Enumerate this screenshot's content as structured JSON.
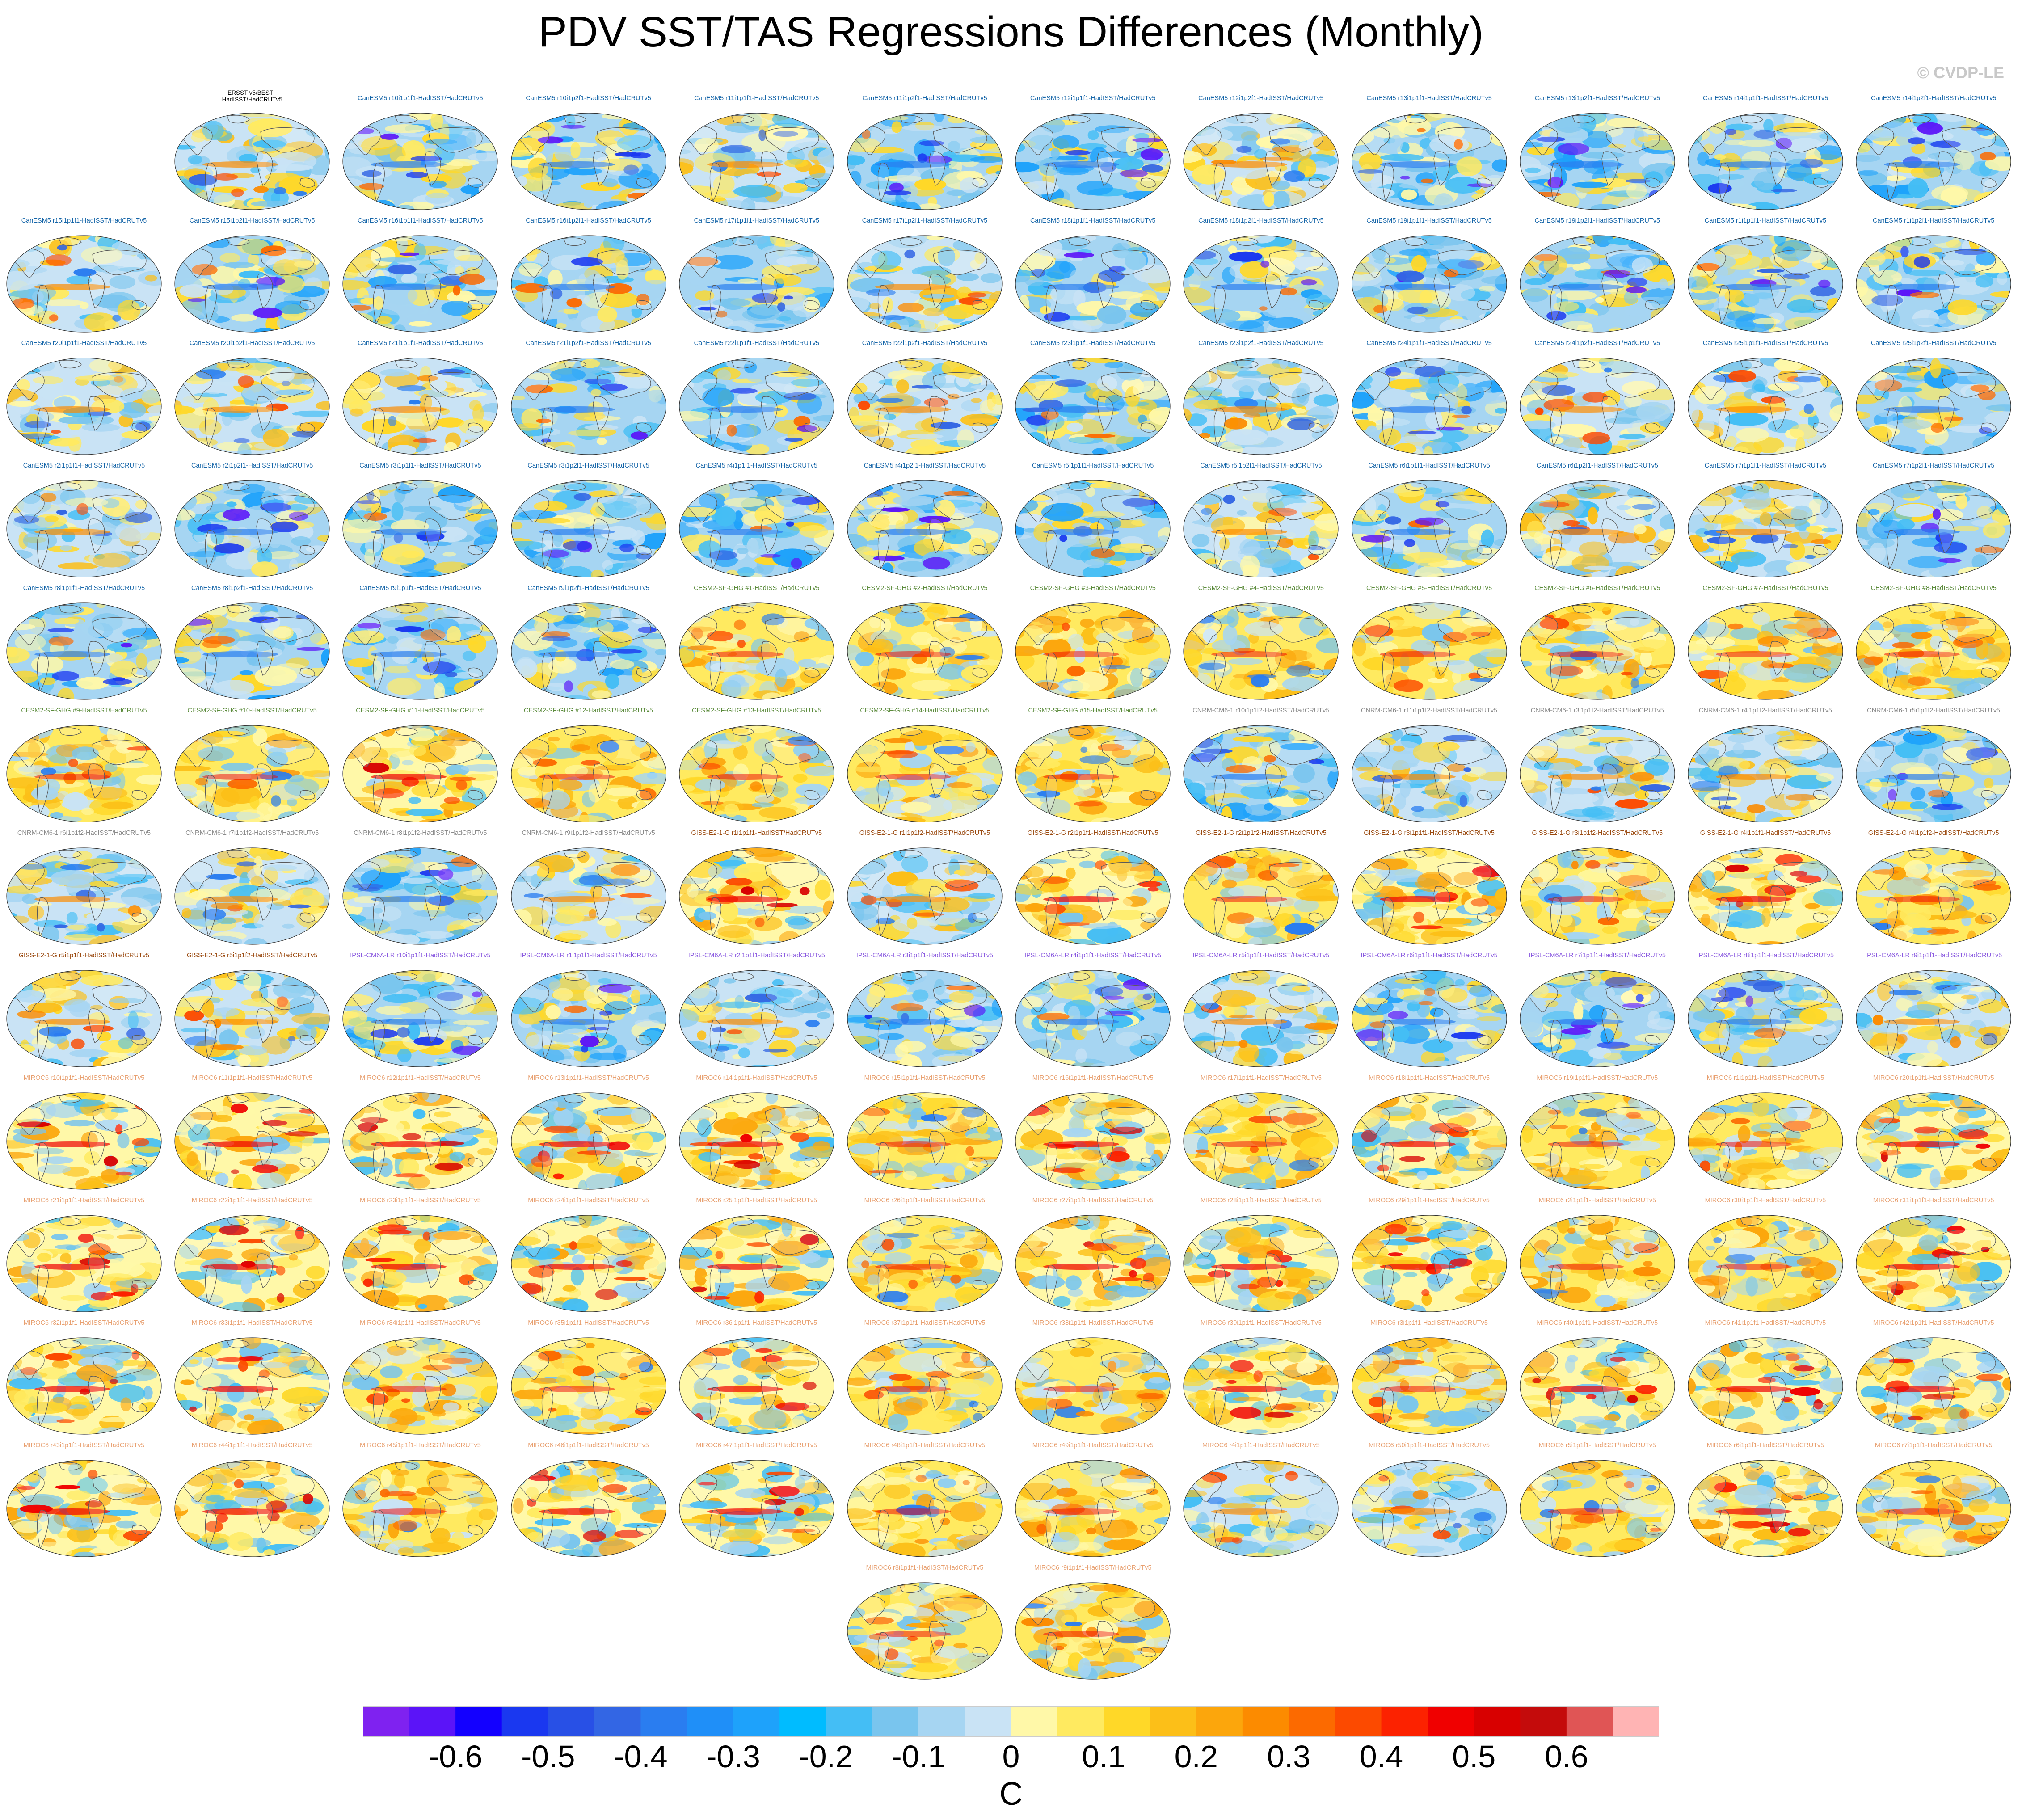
{
  "title": "PDV SST/TAS Regressions Differences (Monthly)",
  "watermark": "© CVDP-LE",
  "colorbar": {
    "units": "C",
    "colors": [
      "#7f22f0",
      "#5b14f8",
      "#1300ff",
      "#1a38f0",
      "#2850e6",
      "#3366e4",
      "#2a7df0",
      "#1f8ff8",
      "#1ea2fb",
      "#00bcff",
      "#44bef5",
      "#79c5ee",
      "#a6d5f2",
      "#c9e3f5",
      "#fff8a8",
      "#ffea60",
      "#ffd828",
      "#fcbf18",
      "#fca60c",
      "#fc8b00",
      "#fc6a00",
      "#fc4a00",
      "#fc2200",
      "#f00000",
      "#d80000",
      "#c40b0b",
      "#e05555",
      "#ffb4b4"
    ],
    "tick_labels": [
      "-0.6",
      "-0.5",
      "-0.4",
      "-0.3",
      "-0.2",
      "-0.1",
      "0",
      "0.1",
      "0.2",
      "0.3",
      "0.4",
      "0.5",
      "0.6"
    ]
  },
  "chart_data": {
    "type": "heatmap",
    "title": "PDV SST/TAS Regressions Differences (Monthly)",
    "colorbar_units": "C",
    "colorbar_range": [
      -0.7,
      0.7
    ],
    "colorbar_ticks": [
      -0.6,
      -0.5,
      -0.4,
      -0.3,
      -0.2,
      -0.1,
      0,
      0.1,
      0.2,
      0.3,
      0.4,
      0.5,
      0.6
    ],
    "model_colors": {
      "obs": "#000000",
      "CanESM5": "#1565a8",
      "CESM2-SF-GHG": "#5a8a3a",
      "CNRM-CM6-1": "#8a8a8a",
      "GISS-E2-1-G": "#9a4a10",
      "IPSL-CM6A-LR": "#8a5ae0",
      "MIROC6": "#e8a070"
    },
    "panels": [
      {
        "label": "ERSST v5/BEST -\nHadISST/HadCRUTv5",
        "group": "obs",
        "style": "mixed"
      },
      {
        "label": "CanESM5 r10i1p1f1-HadISST/HadCRUTv5",
        "group": "CanESM5",
        "style": "cool"
      },
      {
        "label": "CanESM5 r10i1p2f1-HadISST/HadCRUTv5",
        "group": "CanESM5",
        "style": "cool"
      },
      {
        "label": "CanESM5 r11i1p1f1-HadISST/HadCRUTv5",
        "group": "CanESM5",
        "style": "mixed"
      },
      {
        "label": "CanESM5 r11i1p2f1-HadISST/HadCRUTv5",
        "group": "CanESM5",
        "style": "cool"
      },
      {
        "label": "CanESM5 r12i1p1f1-HadISST/HadCRUTv5",
        "group": "CanESM5",
        "style": "cool"
      },
      {
        "label": "CanESM5 r12i1p2f1-HadISST/HadCRUTv5",
        "group": "CanESM5",
        "style": "mixed"
      },
      {
        "label": "CanESM5 r13i1p1f1-HadISST/HadCRUTv5",
        "group": "CanESM5",
        "style": "cool"
      },
      {
        "label": "CanESM5 r13i1p2f1-HadISST/HadCRUTv5",
        "group": "CanESM5",
        "style": "cool"
      },
      {
        "label": "CanESM5 r14i1p1f1-HadISST/HadCRUTv5",
        "group": "CanESM5",
        "style": "cool"
      },
      {
        "label": "CanESM5 r14i1p2f1-HadISST/HadCRUTv5",
        "group": "CanESM5",
        "style": "cool"
      },
      {
        "label": "CanESM5 r15i1p1f1-HadISST/HadCRUTv5",
        "group": "CanESM5",
        "style": "mixed"
      },
      {
        "label": "CanESM5 r15i1p2f1-HadISST/HadCRUTv5",
        "group": "CanESM5",
        "style": "cool"
      },
      {
        "label": "CanESM5 r16i1p1f1-HadISST/HadCRUTv5",
        "group": "CanESM5",
        "style": "cool"
      },
      {
        "label": "CanESM5 r16i1p2f1-HadISST/HadCRUTv5",
        "group": "CanESM5",
        "style": "cool"
      },
      {
        "label": "CanESM5 r17i1p1f1-HadISST/HadCRUTv5",
        "group": "CanESM5",
        "style": "cool"
      },
      {
        "label": "CanESM5 r17i1p2f1-HadISST/HadCRUTv5",
        "group": "CanESM5",
        "style": "mixed"
      },
      {
        "label": "CanESM5 r18i1p1f1-HadISST/HadCRUTv5",
        "group": "CanESM5",
        "style": "cool"
      },
      {
        "label": "CanESM5 r18i1p2f1-HadISST/HadCRUTv5",
        "group": "CanESM5",
        "style": "cool"
      },
      {
        "label": "CanESM5 r19i1p1f1-HadISST/HadCRUTv5",
        "group": "CanESM5",
        "style": "cool"
      },
      {
        "label": "CanESM5 r19i1p2f1-HadISST/HadCRUTv5",
        "group": "CanESM5",
        "style": "cool"
      },
      {
        "label": "CanESM5 r1i1p1f1-HadISST/HadCRUTv5",
        "group": "CanESM5",
        "style": "cool"
      },
      {
        "label": "CanESM5 r1i1p2f1-HadISST/HadCRUTv5",
        "group": "CanESM5",
        "style": "cool"
      },
      {
        "label": "CanESM5 r20i1p1f1-HadISST/HadCRUTv5",
        "group": "CanESM5",
        "style": "mixed"
      },
      {
        "label": "CanESM5 r20i1p2f1-HadISST/HadCRUTv5",
        "group": "CanESM5",
        "style": "mixed"
      },
      {
        "label": "CanESM5 r21i1p1f1-HadISST/HadCRUTv5",
        "group": "CanESM5",
        "style": "mixed"
      },
      {
        "label": "CanESM5 r21i1p2f1-HadISST/HadCRUTv5",
        "group": "CanESM5",
        "style": "cool"
      },
      {
        "label": "CanESM5 r22i1p1f1-HadISST/HadCRUTv5",
        "group": "CanESM5",
        "style": "cool"
      },
      {
        "label": "CanESM5 r22i1p2f1-HadISST/HadCRUTv5",
        "group": "CanESM5",
        "style": "mixed"
      },
      {
        "label": "CanESM5 r23i1p1f1-HadISST/HadCRUTv5",
        "group": "CanESM5",
        "style": "cool"
      },
      {
        "label": "CanESM5 r23i1p2f1-HadISST/HadCRUTv5",
        "group": "CanESM5",
        "style": "mixed"
      },
      {
        "label": "CanESM5 r24i1p1f1-HadISST/HadCRUTv5",
        "group": "CanESM5",
        "style": "cool"
      },
      {
        "label": "CanESM5 r24i1p2f1-HadISST/HadCRUTv5",
        "group": "CanESM5",
        "style": "mixed"
      },
      {
        "label": "CanESM5 r25i1p1f1-HadISST/HadCRUTv5",
        "group": "CanESM5",
        "style": "mixed"
      },
      {
        "label": "CanESM5 r25i1p2f1-HadISST/HadCRUTv5",
        "group": "CanESM5",
        "style": "cool"
      },
      {
        "label": "CanESM5 r2i1p1f1-HadISST/HadCRUTv5",
        "group": "CanESM5",
        "style": "mixed"
      },
      {
        "label": "CanESM5 r2i1p2f1-HadISST/HadCRUTv5",
        "group": "CanESM5",
        "style": "cool"
      },
      {
        "label": "CanESM5 r3i1p1f1-HadISST/HadCRUTv5",
        "group": "CanESM5",
        "style": "cool"
      },
      {
        "label": "CanESM5 r3i1p2f1-HadISST/HadCRUTv5",
        "group": "CanESM5",
        "style": "cool"
      },
      {
        "label": "CanESM5 r4i1p1f1-HadISST/HadCRUTv5",
        "group": "CanESM5",
        "style": "cool"
      },
      {
        "label": "CanESM5 r4i1p2f1-HadISST/HadCRUTv5",
        "group": "CanESM5",
        "style": "cool"
      },
      {
        "label": "CanESM5 r5i1p1f1-HadISST/HadCRUTv5",
        "group": "CanESM5",
        "style": "cool"
      },
      {
        "label": "CanESM5 r5i1p2f1-HadISST/HadCRUTv5",
        "group": "CanESM5",
        "style": "mixed"
      },
      {
        "label": "CanESM5 r6i1p1f1-HadISST/HadCRUTv5",
        "group": "CanESM5",
        "style": "cool"
      },
      {
        "label": "CanESM5 r6i1p2f1-HadISST/HadCRUTv5",
        "group": "CanESM5",
        "style": "mixed"
      },
      {
        "label": "CanESM5 r7i1p1f1-HadISST/HadCRUTv5",
        "group": "CanESM5",
        "style": "mixed"
      },
      {
        "label": "CanESM5 r7i1p2f1-HadISST/HadCRUTv5",
        "group": "CanESM5",
        "style": "cool"
      },
      {
        "label": "CanESM5 r8i1p1f1-HadISST/HadCRUTv5",
        "group": "CanESM5",
        "style": "cool"
      },
      {
        "label": "CanESM5 r8i1p2f1-HadISST/HadCRUTv5",
        "group": "CanESM5",
        "style": "cool"
      },
      {
        "label": "CanESM5 r9i1p1f1-HadISST/HadCRUTv5",
        "group": "CanESM5",
        "style": "cool"
      },
      {
        "label": "CanESM5 r9i1p2f1-HadISST/HadCRUTv5",
        "group": "CanESM5",
        "style": "cool"
      },
      {
        "label": "CESM2-SF-GHG #1-HadISST/HadCRUTv5",
        "group": "CESM2-SF-GHG",
        "style": "warm"
      },
      {
        "label": "CESM2-SF-GHG #2-HadISST/HadCRUTv5",
        "group": "CESM2-SF-GHG",
        "style": "warm"
      },
      {
        "label": "CESM2-SF-GHG #3-HadISST/HadCRUTv5",
        "group": "CESM2-SF-GHG",
        "style": "warm"
      },
      {
        "label": "CESM2-SF-GHG #4-HadISST/HadCRUTv5",
        "group": "CESM2-SF-GHG",
        "style": "warm"
      },
      {
        "label": "CESM2-SF-GHG #5-HadISST/HadCRUTv5",
        "group": "CESM2-SF-GHG",
        "style": "warm"
      },
      {
        "label": "CESM2-SF-GHG #6-HadISST/HadCRUTv5",
        "group": "CESM2-SF-GHG",
        "style": "warm"
      },
      {
        "label": "CESM2-SF-GHG #7-HadISST/HadCRUTv5",
        "group": "CESM2-SF-GHG",
        "style": "warm"
      },
      {
        "label": "CESM2-SF-GHG #8-HadISST/HadCRUTv5",
        "group": "CESM2-SF-GHG",
        "style": "warm"
      },
      {
        "label": "CESM2-SF-GHG #9-HadISST/HadCRUTv5",
        "group": "CESM2-SF-GHG",
        "style": "warm"
      },
      {
        "label": "CESM2-SF-GHG #10-HadISST/HadCRUTv5",
        "group": "CESM2-SF-GHG",
        "style": "warm"
      },
      {
        "label": "CESM2-SF-GHG #11-HadISST/HadCRUTv5",
        "group": "CESM2-SF-GHG",
        "style": "hot"
      },
      {
        "label": "CESM2-SF-GHG #12-HadISST/HadCRUTv5",
        "group": "CESM2-SF-GHG",
        "style": "warm"
      },
      {
        "label": "CESM2-SF-GHG #13-HadISST/HadCRUTv5",
        "group": "CESM2-SF-GHG",
        "style": "warm"
      },
      {
        "label": "CESM2-SF-GHG #14-HadISST/HadCRUTv5",
        "group": "CESM2-SF-GHG",
        "style": "warm"
      },
      {
        "label": "CESM2-SF-GHG #15-HadISST/HadCRUTv5",
        "group": "CESM2-SF-GHG",
        "style": "warm"
      },
      {
        "label": "CNRM-CM6-1 r10i1p1f2-HadISST/HadCRUTv5",
        "group": "CNRM-CM6-1",
        "style": "cool"
      },
      {
        "label": "CNRM-CM6-1 r11i1p1f2-HadISST/HadCRUTv5",
        "group": "CNRM-CM6-1",
        "style": "mixed"
      },
      {
        "label": "CNRM-CM6-1 r3i1p1f2-HadISST/HadCRUTv5",
        "group": "CNRM-CM6-1",
        "style": "mixed"
      },
      {
        "label": "CNRM-CM6-1 r4i1p1f2-HadISST/HadCRUTv5",
        "group": "CNRM-CM6-1",
        "style": "mixed"
      },
      {
        "label": "CNRM-CM6-1 r5i1p1f2-HadISST/HadCRUTv5",
        "group": "CNRM-CM6-1",
        "style": "cool"
      },
      {
        "label": "CNRM-CM6-1 r6i1p1f2-HadISST/HadCRUTv5",
        "group": "CNRM-CM6-1",
        "style": "mixed"
      },
      {
        "label": "CNRM-CM6-1 r7i1p1f2-HadISST/HadCRUTv5",
        "group": "CNRM-CM6-1",
        "style": "mixed"
      },
      {
        "label": "CNRM-CM6-1 r8i1p1f2-HadISST/HadCRUTv5",
        "group": "CNRM-CM6-1",
        "style": "cool"
      },
      {
        "label": "CNRM-CM6-1 r9i1p1f2-HadISST/HadCRUTv5",
        "group": "CNRM-CM6-1",
        "style": "mixed"
      },
      {
        "label": "GISS-E2-1-G r1i1p1f1-HadISST/HadCRUTv5",
        "group": "GISS-E2-1-G",
        "style": "hot"
      },
      {
        "label": "GISS-E2-1-G r1i1p1f2-HadISST/HadCRUTv5",
        "group": "GISS-E2-1-G",
        "style": "mixed"
      },
      {
        "label": "GISS-E2-1-G r2i1p1f1-HadISST/HadCRUTv5",
        "group": "GISS-E2-1-G",
        "style": "hot"
      },
      {
        "label": "GISS-E2-1-G r2i1p1f2-HadISST/HadCRUTv5",
        "group": "GISS-E2-1-G",
        "style": "warm"
      },
      {
        "label": "GISS-E2-1-G r3i1p1f1-HadISST/HadCRUTv5",
        "group": "GISS-E2-1-G",
        "style": "hot"
      },
      {
        "label": "GISS-E2-1-G r3i1p1f2-HadISST/HadCRUTv5",
        "group": "GISS-E2-1-G",
        "style": "warm"
      },
      {
        "label": "GISS-E2-1-G r4i1p1f1-HadISST/HadCRUTv5",
        "group": "GISS-E2-1-G",
        "style": "hot"
      },
      {
        "label": "GISS-E2-1-G r4i1p1f2-HadISST/HadCRUTv5",
        "group": "GISS-E2-1-G",
        "style": "warm"
      },
      {
        "label": "GISS-E2-1-G r5i1p1f1-HadISST/HadCRUTv5",
        "group": "GISS-E2-1-G",
        "style": "mixed"
      },
      {
        "label": "GISS-E2-1-G r5i1p1f2-HadISST/HadCRUTv5",
        "group": "GISS-E2-1-G",
        "style": "mixed"
      },
      {
        "label": "IPSL-CM6A-LR r10i1p1f1-HadISST/HadCRUTv5",
        "group": "IPSL-CM6A-LR",
        "style": "cool"
      },
      {
        "label": "IPSL-CM6A-LR r1i1p1f1-HadISST/HadCRUTv5",
        "group": "IPSL-CM6A-LR",
        "style": "cool"
      },
      {
        "label": "IPSL-CM6A-LR r2i1p1f1-HadISST/HadCRUTv5",
        "group": "IPSL-CM6A-LR",
        "style": "mixed"
      },
      {
        "label": "IPSL-CM6A-LR r3i1p1f1-HadISST/HadCRUTv5",
        "group": "IPSL-CM6A-LR",
        "style": "cool"
      },
      {
        "label": "IPSL-CM6A-LR r4i1p1f1-HadISST/HadCRUTv5",
        "group": "IPSL-CM6A-LR",
        "style": "cool"
      },
      {
        "label": "IPSL-CM6A-LR r5i1p1f1-HadISST/HadCRUTv5",
        "group": "IPSL-CM6A-LR",
        "style": "mixed"
      },
      {
        "label": "IPSL-CM6A-LR r6i1p1f1-HadISST/HadCRUTv5",
        "group": "IPSL-CM6A-LR",
        "style": "cool"
      },
      {
        "label": "IPSL-CM6A-LR r7i1p1f1-HadISST/HadCRUTv5",
        "group": "IPSL-CM6A-LR",
        "style": "cool"
      },
      {
        "label": "IPSL-CM6A-LR r8i1p1f1-HadISST/HadCRUTv5",
        "group": "IPSL-CM6A-LR",
        "style": "cool"
      },
      {
        "label": "IPSL-CM6A-LR r9i1p1f1-HadISST/HadCRUTv5",
        "group": "IPSL-CM6A-LR",
        "style": "mixed"
      },
      {
        "label": "MIROC6 r10i1p1f1-HadISST/HadCRUTv5",
        "group": "MIROC6",
        "style": "hot"
      },
      {
        "label": "MIROC6 r11i1p1f1-HadISST/HadCRUTv5",
        "group": "MIROC6",
        "style": "hot"
      },
      {
        "label": "MIROC6 r12i1p1f1-HadISST/HadCRUTv5",
        "group": "MIROC6",
        "style": "hot"
      },
      {
        "label": "MIROC6 r13i1p1f1-HadISST/HadCRUTv5",
        "group": "MIROC6",
        "style": "hot"
      },
      {
        "label": "MIROC6 r14i1p1f1-HadISST/HadCRUTv5",
        "group": "MIROC6",
        "style": "hot"
      },
      {
        "label": "MIROC6 r15i1p1f1-HadISST/HadCRUTv5",
        "group": "MIROC6",
        "style": "warm"
      },
      {
        "label": "MIROC6 r16i1p1f1-HadISST/HadCRUTv5",
        "group": "MIROC6",
        "style": "hot"
      },
      {
        "label": "MIROC6 r17i1p1f1-HadISST/HadCRUTv5",
        "group": "MIROC6",
        "style": "warm"
      },
      {
        "label": "MIROC6 r18i1p1f1-HadISST/HadCRUTv5",
        "group": "MIROC6",
        "style": "hot"
      },
      {
        "label": "MIROC6 r19i1p1f1-HadISST/HadCRUTv5",
        "group": "MIROC6",
        "style": "warm"
      },
      {
        "label": "MIROC6 r1i1p1f1-HadISST/HadCRUTv5",
        "group": "MIROC6",
        "style": "warm"
      },
      {
        "label": "MIROC6 r20i1p1f1-HadISST/HadCRUTv5",
        "group": "MIROC6",
        "style": "hot"
      },
      {
        "label": "MIROC6 r21i1p1f1-HadISST/HadCRUTv5",
        "group": "MIROC6",
        "style": "hot"
      },
      {
        "label": "MIROC6 r22i1p1f1-HadISST/HadCRUTv5",
        "group": "MIROC6",
        "style": "hot"
      },
      {
        "label": "MIROC6 r23i1p1f1-HadISST/HadCRUTv5",
        "group": "MIROC6",
        "style": "hot"
      },
      {
        "label": "MIROC6 r24i1p1f1-HadISST/HadCRUTv5",
        "group": "MIROC6",
        "style": "hot"
      },
      {
        "label": "MIROC6 r25i1p1f1-HadISST/HadCRUTv5",
        "group": "MIROC6",
        "style": "hot"
      },
      {
        "label": "MIROC6 r26i1p1f1-HadISST/HadCRUTv5",
        "group": "MIROC6",
        "style": "warm"
      },
      {
        "label": "MIROC6 r27i1p1f1-HadISST/HadCRUTv5",
        "group": "MIROC6",
        "style": "hot"
      },
      {
        "label": "MIROC6 r28i1p1f1-HadISST/HadCRUTv5",
        "group": "MIROC6",
        "style": "hot"
      },
      {
        "label": "MIROC6 r29i1p1f1-HadISST/HadCRUTv5",
        "group": "MIROC6",
        "style": "hot"
      },
      {
        "label": "MIROC6 r2i1p1f1-HadISST/HadCRUTv5",
        "group": "MIROC6",
        "style": "warm"
      },
      {
        "label": "MIROC6 r30i1p1f1-HadISST/HadCRUTv5",
        "group": "MIROC6",
        "style": "warm"
      },
      {
        "label": "MIROC6 r31i1p1f1-HadISST/HadCRUTv5",
        "group": "MIROC6",
        "style": "hot"
      },
      {
        "label": "MIROC6 r32i1p1f1-HadISST/HadCRUTv5",
        "group": "MIROC6",
        "style": "hot"
      },
      {
        "label": "MIROC6 r33i1p1f1-HadISST/HadCRUTv5",
        "group": "MIROC6",
        "style": "hot"
      },
      {
        "label": "MIROC6 r34i1p1f1-HadISST/HadCRUTv5",
        "group": "MIROC6",
        "style": "warm"
      },
      {
        "label": "MIROC6 r35i1p1f1-HadISST/HadCRUTv5",
        "group": "MIROC6",
        "style": "warm"
      },
      {
        "label": "MIROC6 r36i1p1f1-HadISST/HadCRUTv5",
        "group": "MIROC6",
        "style": "hot"
      },
      {
        "label": "MIROC6 r37i1p1f1-HadISST/HadCRUTv5",
        "group": "MIROC6",
        "style": "warm"
      },
      {
        "label": "MIROC6 r38i1p1f1-HadISST/HadCRUTv5",
        "group": "MIROC6",
        "style": "warm"
      },
      {
        "label": "MIROC6 r39i1p1f1-HadISST/HadCRUTv5",
        "group": "MIROC6",
        "style": "hot"
      },
      {
        "label": "MIROC6 r3i1p1f1-HadISST/HadCRUTv5",
        "group": "MIROC6",
        "style": "warm"
      },
      {
        "label": "MIROC6 r40i1p1f1-HadISST/HadCRUTv5",
        "group": "MIROC6",
        "style": "hot"
      },
      {
        "label": "MIROC6 r41i1p1f1-HadISST/HadCRUTv5",
        "group": "MIROC6",
        "style": "hot"
      },
      {
        "label": "MIROC6 r42i1p1f1-HadISST/HadCRUTv5",
        "group": "MIROC6",
        "style": "hot"
      },
      {
        "label": "MIROC6 r43i1p1f1-HadISST/HadCRUTv5",
        "group": "MIROC6",
        "style": "hot"
      },
      {
        "label": "MIROC6 r44i1p1f1-HadISST/HadCRUTv5",
        "group": "MIROC6",
        "style": "hot"
      },
      {
        "label": "MIROC6 r45i1p1f1-HadISST/HadCRUTv5",
        "group": "MIROC6",
        "style": "warm"
      },
      {
        "label": "MIROC6 r46i1p1f1-HadISST/HadCRUTv5",
        "group": "MIROC6",
        "style": "hot"
      },
      {
        "label": "MIROC6 r47i1p1f1-HadISST/HadCRUTv5",
        "group": "MIROC6",
        "style": "hot"
      },
      {
        "label": "MIROC6 r48i1p1f1-HadISST/HadCRUTv5",
        "group": "MIROC6",
        "style": "warm"
      },
      {
        "label": "MIROC6 r49i1p1f1-HadISST/HadCRUTv5",
        "group": "MIROC6",
        "style": "warm"
      },
      {
        "label": "MIROC6 r4i1p1f1-HadISST/HadCRUTv5",
        "group": "MIROC6",
        "style": "mixed"
      },
      {
        "label": "MIROC6 r50i1p1f1-HadISST/HadCRUTv5",
        "group": "MIROC6",
        "style": "mixed"
      },
      {
        "label": "MIROC6 r5i1p1f1-HadISST/HadCRUTv5",
        "group": "MIROC6",
        "style": "warm"
      },
      {
        "label": "MIROC6 r6i1p1f1-HadISST/HadCRUTv5",
        "group": "MIROC6",
        "style": "hot"
      },
      {
        "label": "MIROC6 r7i1p1f1-HadISST/HadCRUTv5",
        "group": "MIROC6",
        "style": "warm"
      },
      {
        "label": "MIROC6 r8i1p1f1-HadISST/HadCRUTv5",
        "group": "MIROC6",
        "style": "warm"
      },
      {
        "label": "MIROC6 r9i1p1f1-HadISST/HadCRUTv5",
        "group": "MIROC6",
        "style": "warm"
      }
    ]
  }
}
